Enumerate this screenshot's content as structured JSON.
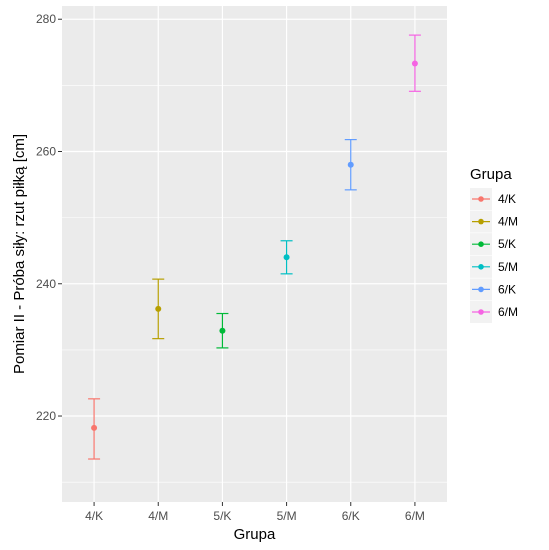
{
  "chart_data": {
    "type": "errorbar",
    "xlabel": "Grupa",
    "ylabel": "Pomiar II - Próba siły: rzut piłką [cm]",
    "categories": [
      "4/K",
      "4/M",
      "5/K",
      "5/M",
      "6/K",
      "6/M"
    ],
    "yticks": [
      220,
      240,
      260,
      280
    ],
    "ylim": [
      207,
      282
    ],
    "grid": true,
    "legend": {
      "title": "Grupa",
      "position": "right",
      "entries": [
        "4/K",
        "4/M",
        "5/K",
        "5/M",
        "6/K",
        "6/M"
      ]
    },
    "series": [
      {
        "name": "4/K",
        "value": 218.2,
        "lower": 213.5,
        "upper": 222.6,
        "color": "#F8766D"
      },
      {
        "name": "4/M",
        "value": 236.2,
        "lower": 231.7,
        "upper": 240.7,
        "color": "#B79F00"
      },
      {
        "name": "5/K",
        "value": 232.9,
        "lower": 230.3,
        "upper": 235.5,
        "color": "#00BA38"
      },
      {
        "name": "5/M",
        "value": 244.0,
        "lower": 241.5,
        "upper": 246.5,
        "color": "#00BFC4"
      },
      {
        "name": "6/K",
        "value": 258.0,
        "lower": 254.2,
        "upper": 261.8,
        "color": "#619CFF"
      },
      {
        "name": "6/M",
        "value": 273.3,
        "lower": 269.1,
        "upper": 277.6,
        "color": "#F564E3"
      }
    ]
  }
}
